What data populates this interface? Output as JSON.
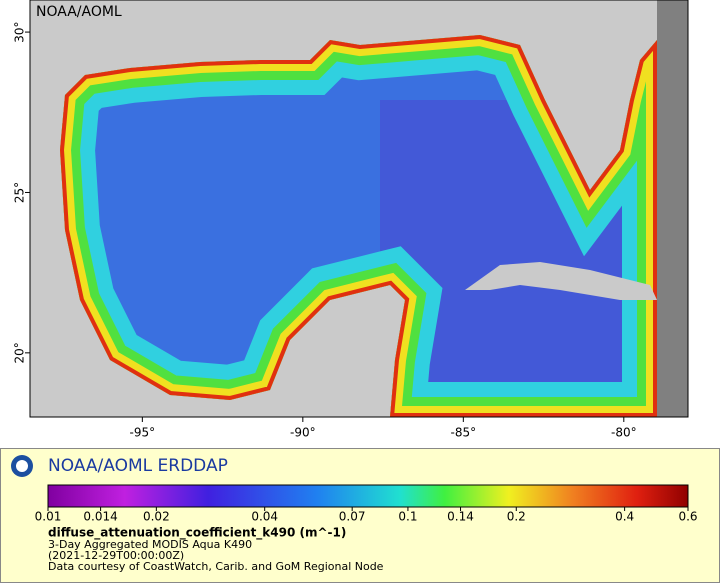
{
  "map": {
    "watermark": "NOAA/AOML",
    "xlim": [
      -98.5,
      -78
    ],
    "ylim": [
      18,
      31
    ],
    "xticks": [
      {
        "value": -95,
        "label": "-95°"
      },
      {
        "value": -90,
        "label": "-90°"
      },
      {
        "value": -85,
        "label": "-85°"
      },
      {
        "value": -80,
        "label": "-80°"
      }
    ],
    "yticks": [
      {
        "value": 20,
        "label": "20°"
      },
      {
        "value": 25,
        "label": "25°"
      },
      {
        "value": 30,
        "label": "30°"
      }
    ]
  },
  "legend": {
    "title": "NOAA/AOML ERDDAP",
    "colorbar": {
      "log": true,
      "lim": [
        0.01,
        0.6
      ],
      "ticks": [
        0.01,
        0.014,
        0.02,
        0.04,
        0.07,
        0.1,
        0.14,
        0.2,
        0.4,
        0.6
      ]
    },
    "variable": "diffuse_attenuation_coefficient_k490 (m^-1)",
    "lines": [
      "3-Day Aggregated MODIS Aqua K490",
      "(2021-12-29T00:00:00Z)",
      "Data courtesy of CoastWatch, Carib. and GoM Regional Node"
    ]
  }
}
